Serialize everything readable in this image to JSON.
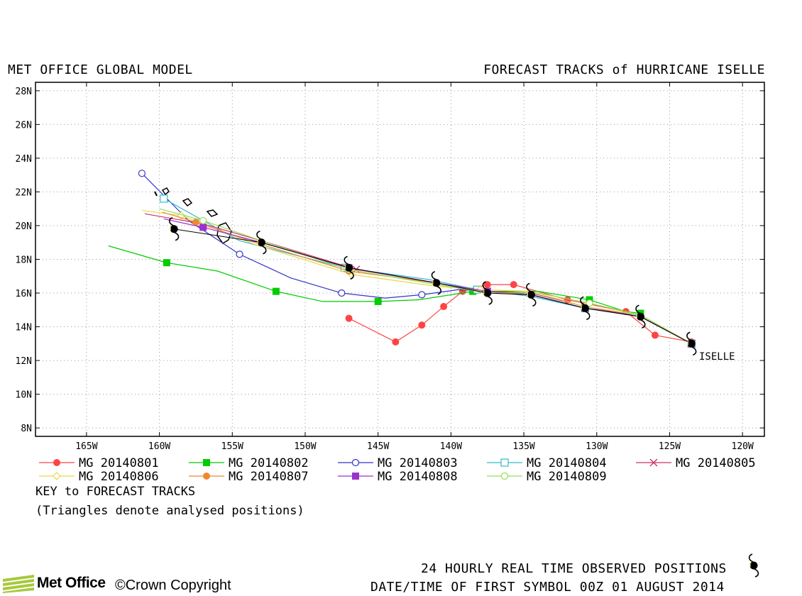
{
  "header": {
    "left": "MET OFFICE GLOBAL MODEL",
    "right": "FORECAST TRACKS of HURRICANE ISELLE"
  },
  "chart_data": {
    "type": "line",
    "title": "FORECAST TRACKS of HURRICANE ISELLE",
    "x_ticks": [
      "165W",
      "160W",
      "155W",
      "150W",
      "145W",
      "140W",
      "135W",
      "130W",
      "125W",
      "120W"
    ],
    "y_ticks": [
      "8N",
      "10N",
      "12N",
      "14N",
      "16N",
      "18N",
      "20N",
      "22N",
      "24N",
      "26N",
      "28N"
    ],
    "xlim": [
      -168.5,
      -118.5
    ],
    "ylim": [
      7.5,
      28.5
    ],
    "grid": true,
    "storm_label": "ISELLE",
    "colors": {
      "mg20140801": "#ff4444",
      "mg20140802": "#00cc00",
      "mg20140803": "#3333cc",
      "mg20140804": "#33bbcc",
      "mg20140805": "#cc3366",
      "mg20140806": "#e8d84a",
      "mg20140807": "#ee8833",
      "mg20140808": "#9933cc",
      "mg20140809": "#99dd55",
      "observed": "#000000"
    },
    "series": [
      {
        "name": "MG 20140801",
        "marker": "filled-circle",
        "color": "#ff4444",
        "x": [
          -123.5,
          -126.0,
          -128.0,
          -132.0,
          -135.7,
          -137.5,
          -139.2,
          -140.5,
          -142.0,
          -143.8,
          -147.0
        ],
        "y": [
          13.1,
          13.5,
          14.9,
          15.6,
          16.5,
          16.5,
          16.1,
          15.2,
          14.1,
          13.1,
          14.5
        ]
      },
      {
        "name": "MG 20140802",
        "marker": "filled-square",
        "color": "#00cc00",
        "x": [
          -127.0,
          -128.0,
          -130.5,
          -134.0,
          -138.5,
          -142.2,
          -145.0,
          -148.8,
          -152.0,
          -156.0,
          -159.5,
          -163.5
        ],
        "y": [
          14.8,
          14.9,
          15.6,
          16.1,
          16.1,
          15.6,
          15.5,
          15.5,
          16.1,
          17.3,
          17.8,
          18.8
        ]
      },
      {
        "name": "MG 20140803",
        "marker": "open-circle",
        "color": "#3333cc",
        "x": [
          -123.5,
          -127.0,
          -130.8,
          -134.5,
          -137.5,
          -139.5,
          -142.0,
          -144.5,
          -147.5,
          -151.0,
          -154.5,
          -158.0,
          -161.2
        ],
        "y": [
          13.0,
          14.7,
          15.1,
          15.9,
          16.1,
          16.2,
          15.9,
          15.7,
          16.0,
          16.9,
          18.3,
          20.3,
          23.1
        ]
      },
      {
        "name": "MG 20140804",
        "marker": "open-square",
        "color": "#33bbcc",
        "x": [
          -123.5,
          -127.0,
          -130.8,
          -134.5,
          -138.2,
          -141.5,
          -147.3,
          -154.5,
          -159.7
        ],
        "y": [
          13.0,
          14.7,
          15.1,
          15.8,
          16.2,
          16.8,
          17.5,
          19.1,
          21.6
        ]
      },
      {
        "name": "MG 20140805",
        "marker": "x",
        "color": "#cc3366",
        "x": [
          -123.5,
          -127.0,
          -130.8,
          -134.5,
          -137.5,
          -141.0,
          -146.5,
          -153.0,
          -157.0,
          -161.0
        ],
        "y": [
          13.0,
          14.6,
          15.2,
          16.0,
          16.1,
          16.6,
          17.4,
          19.1,
          20.1,
          20.7
        ]
      },
      {
        "name": "MG 20140806",
        "marker": "open-diamond",
        "color": "#e8d84a",
        "x": [
          -123.5,
          -127.0,
          -130.8,
          -134.5,
          -138.0,
          -141.0,
          -146.8,
          -153.5,
          -158.5,
          -161.2
        ],
        "y": [
          13.0,
          14.7,
          15.2,
          16.1,
          16.2,
          16.4,
          17.1,
          18.9,
          20.6,
          20.9
        ]
      },
      {
        "name": "MG 20140807",
        "marker": "filled-circle",
        "color": "#ee8833",
        "x": [
          -123.5,
          -127.0,
          -130.8,
          -134.5,
          -137.5,
          -141.0,
          -147.0,
          -153.8,
          -157.5,
          -159.8
        ],
        "y": [
          13.0,
          14.6,
          15.1,
          15.9,
          16.0,
          16.6,
          17.3,
          19.1,
          20.2,
          20.8
        ]
      },
      {
        "name": "MG 20140808",
        "marker": "filled-square",
        "color": "#9933cc",
        "x": [
          -123.5,
          -127.0,
          -130.8,
          -134.5,
          -137.5,
          -141.0,
          -147.0,
          -153.0,
          -157.0,
          -159.7
        ],
        "y": [
          13.0,
          14.6,
          15.1,
          15.9,
          16.1,
          16.6,
          17.5,
          19.0,
          19.9,
          20.4
        ]
      },
      {
        "name": "MG 20140809",
        "marker": "open-circle",
        "color": "#99dd55",
        "x": [
          -123.5,
          -127.0,
          -130.5,
          -134.0,
          -137.5,
          -141.0,
          -147.0,
          -153.0,
          -157.0,
          -160.0
        ],
        "y": [
          13.0,
          14.7,
          15.4,
          16.0,
          16.0,
          16.5,
          17.4,
          19.1,
          20.3,
          21.0
        ]
      }
    ],
    "observed": {
      "x": [
        -123.5,
        -127.0,
        -130.8,
        -134.5,
        -137.5,
        -141.0,
        -147.0,
        -153.0,
        -159.0
      ],
      "y": [
        13.0,
        14.6,
        15.1,
        15.9,
        16.0,
        16.6,
        17.5,
        19.0,
        19.8
      ]
    },
    "legend": [
      [
        "MG 20140801",
        "MG 20140802",
        "MG 20140803",
        "MG 20140804",
        "MG 20140805"
      ],
      [
        "MG 20140806",
        "MG 20140807",
        "MG 20140808",
        "MG 20140809"
      ]
    ]
  },
  "key": {
    "title": "KEY to FORECAST TRACKS",
    "note": "(Triangles denote analysed positions)"
  },
  "footer": {
    "observed_label": "24 HOURLY REAL TIME OBSERVED POSITIONS",
    "datetime_label": "DATE/TIME OF FIRST SYMBOL 00Z 01 AUGUST 2014",
    "logo_text": "Met Office",
    "copyright": "©Crown Copyright"
  }
}
